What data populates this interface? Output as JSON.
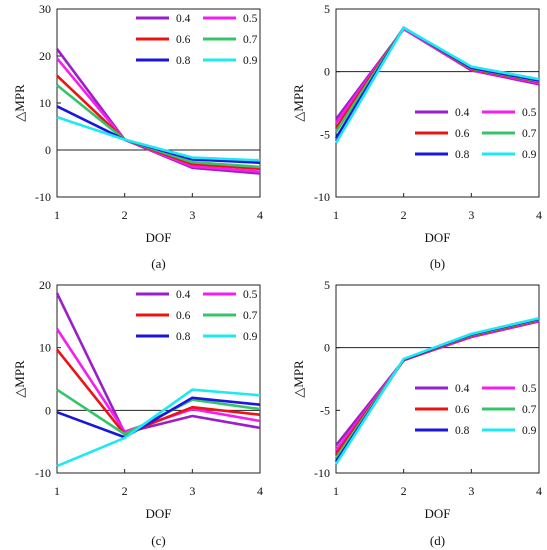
{
  "figure": {
    "xlabel": "DOF",
    "ylabel": "△MPR",
    "colors": {
      "0.4": "#9b1fc8",
      "0.5": "#f51ef1",
      "0.6": "#ee1313",
      "0.7": "#35c46a",
      "0.8": "#1a16dd",
      "0.9": "#1ee8f2"
    }
  },
  "chart_data": [
    {
      "type": "line",
      "caption": "(a)",
      "xlabel": "DOF",
      "ylabel": "△MPR",
      "x": [
        1,
        2,
        3,
        4
      ],
      "xlim": [
        1,
        4
      ],
      "ylim": [
        -10,
        30
      ],
      "yticks": [
        -10,
        0,
        10,
        20,
        30
      ],
      "legend_position": "top-right",
      "series": [
        {
          "name": "0.4",
          "values": [
            21.5,
            2.2,
            -3.8,
            -5.0
          ]
        },
        {
          "name": "0.5",
          "values": [
            19.5,
            2.2,
            -3.5,
            -4.6
          ]
        },
        {
          "name": "0.6",
          "values": [
            15.8,
            2.2,
            -3.0,
            -4.0
          ]
        },
        {
          "name": "0.7",
          "values": [
            13.8,
            2.2,
            -2.6,
            -3.6
          ]
        },
        {
          "name": "0.8",
          "values": [
            9.3,
            2.2,
            -2.0,
            -2.7
          ]
        },
        {
          "name": "0.9",
          "values": [
            7.0,
            2.2,
            -1.6,
            -2.2
          ]
        }
      ]
    },
    {
      "type": "line",
      "caption": "(b)",
      "xlabel": "DOF",
      "ylabel": "△MPR",
      "x": [
        1,
        2,
        3,
        4
      ],
      "xlim": [
        1,
        4
      ],
      "ylim": [
        -10,
        5
      ],
      "yticks": [
        -10,
        -5,
        0,
        5
      ],
      "legend_position": "bottom-right",
      "series": [
        {
          "name": "0.4",
          "values": [
            -3.8,
            3.4,
            0.1,
            -1.0
          ]
        },
        {
          "name": "0.5",
          "values": [
            -4.1,
            3.4,
            0.15,
            -0.9
          ]
        },
        {
          "name": "0.6",
          "values": [
            -4.5,
            3.5,
            0.2,
            -0.8
          ]
        },
        {
          "name": "0.7",
          "values": [
            -4.8,
            3.5,
            0.25,
            -0.75
          ]
        },
        {
          "name": "0.8",
          "values": [
            -5.3,
            3.5,
            0.3,
            -0.7
          ]
        },
        {
          "name": "0.9",
          "values": [
            -5.7,
            3.5,
            0.4,
            -0.6
          ]
        }
      ]
    },
    {
      "type": "line",
      "caption": "(c)",
      "xlabel": "DOF",
      "ylabel": "△MPR",
      "x": [
        1,
        2,
        3,
        4
      ],
      "xlim": [
        1,
        4
      ],
      "ylim": [
        -10,
        20
      ],
      "yticks": [
        -10,
        0,
        10,
        20
      ],
      "legend_position": "top-right",
      "series": [
        {
          "name": "0.4",
          "values": [
            18.7,
            -3.6,
            -0.9,
            -2.8
          ]
        },
        {
          "name": "0.5",
          "values": [
            13.0,
            -3.4,
            0.2,
            -1.7
          ]
        },
        {
          "name": "0.6",
          "values": [
            9.7,
            -3.8,
            0.5,
            -0.7
          ]
        },
        {
          "name": "0.7",
          "values": [
            3.3,
            -3.8,
            1.7,
            0.2
          ]
        },
        {
          "name": "0.8",
          "values": [
            -0.3,
            -4.3,
            2.0,
            0.9
          ]
        },
        {
          "name": "0.9",
          "values": [
            -8.9,
            -4.4,
            3.3,
            2.4
          ]
        }
      ]
    },
    {
      "type": "line",
      "caption": "(d)",
      "xlabel": "DOF",
      "ylabel": "△MPR",
      "x": [
        1,
        2,
        3,
        4
      ],
      "xlim": [
        1,
        4
      ],
      "ylim": [
        -10,
        5
      ],
      "yticks": [
        -10,
        -5,
        0,
        5
      ],
      "legend_position": "bottom-right",
      "series": [
        {
          "name": "0.4",
          "values": [
            -7.8,
            -1.0,
            0.85,
            2.1
          ]
        },
        {
          "name": "0.5",
          "values": [
            -8.2,
            -1.0,
            0.9,
            2.15
          ]
        },
        {
          "name": "0.6",
          "values": [
            -8.5,
            -1.0,
            0.95,
            2.2
          ]
        },
        {
          "name": "0.7",
          "values": [
            -8.8,
            -0.95,
            1.0,
            2.25
          ]
        },
        {
          "name": "0.8",
          "values": [
            -9.1,
            -0.95,
            1.05,
            2.3
          ]
        },
        {
          "name": "0.9",
          "values": [
            -9.3,
            -0.9,
            1.1,
            2.35
          ]
        }
      ]
    }
  ]
}
